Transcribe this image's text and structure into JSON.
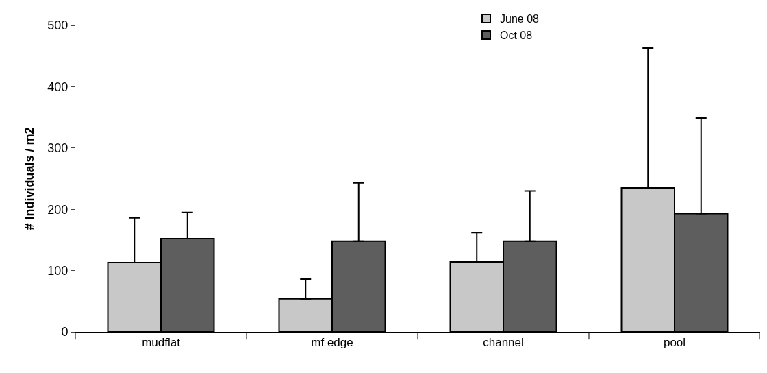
{
  "chart_data": {
    "type": "bar",
    "ylabel": "# Individuals / m2",
    "categories": [
      "mudflat",
      "mf edge",
      "channel",
      "pool"
    ],
    "series": [
      {
        "name": "June 08",
        "color": "#c8c8c8",
        "values": [
          113,
          54,
          114,
          235
        ],
        "errors": [
          [
            113,
            186
          ],
          [
            54,
            86
          ],
          [
            114,
            162
          ],
          [
            235,
            463
          ]
        ]
      },
      {
        "name": "Oct 08",
        "color": "#5e5e5e",
        "values": [
          152,
          148,
          148,
          193
        ],
        "errors": [
          [
            152,
            195
          ],
          [
            148,
            243
          ],
          [
            148,
            230
          ],
          [
            193,
            349
          ]
        ]
      }
    ],
    "ylim": [
      0,
      500
    ],
    "yticks": [
      0,
      100,
      200,
      300,
      400,
      500
    ],
    "legend": "top"
  }
}
